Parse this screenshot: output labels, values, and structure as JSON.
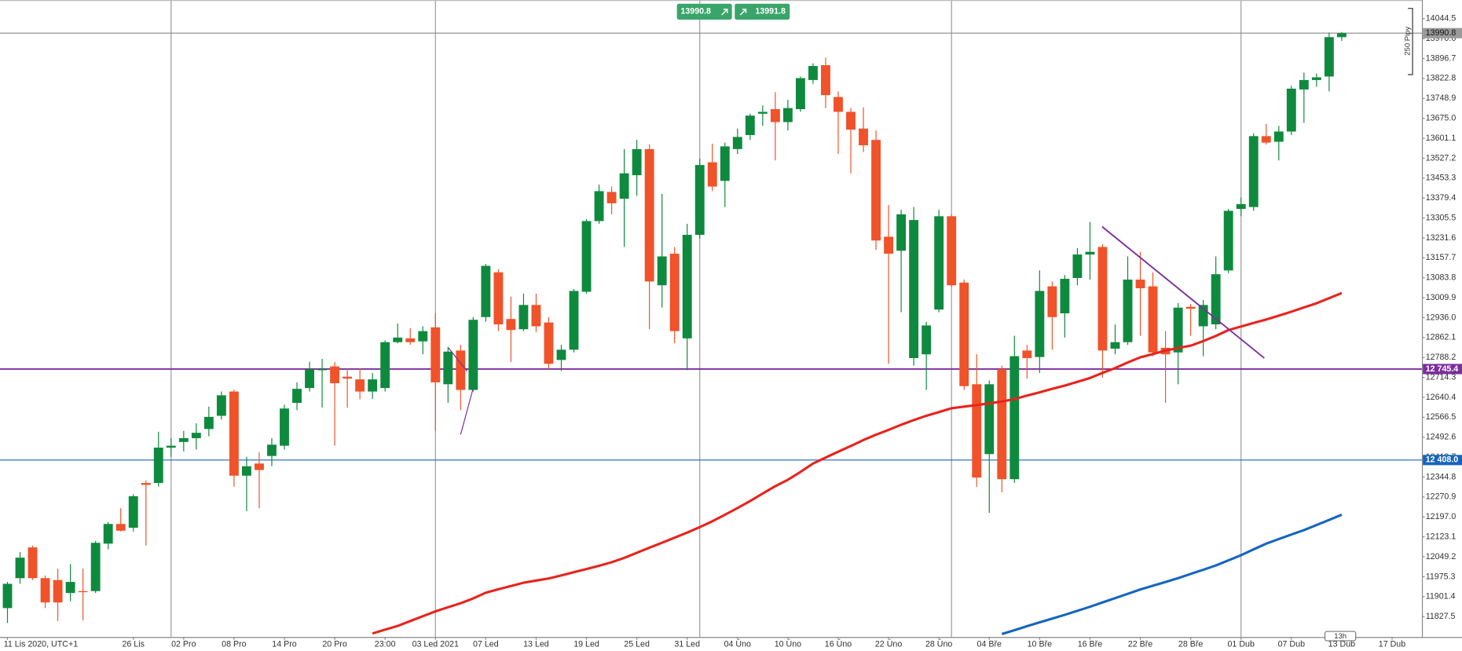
{
  "chart_data": {
    "type": "candlestick",
    "up_color": "#0e8a3e",
    "down_color": "#f0522a",
    "ylim": [
      11751.8,
      14113.7
    ],
    "yticks": [
      14044.5,
      13970.6,
      13896.7,
      13822.8,
      13748.9,
      {
        "value": 13675,
        "label": "13675.0"
      },
      13601.1,
      13527.2,
      13453.3,
      13379.4,
      13305.5,
      13231.6,
      13157.7,
      13083.8,
      13009.9,
      {
        "value": 12936,
        "label": "12936.0"
      },
      12862.1,
      12788.2,
      12714.3,
      12640.4,
      12566.5,
      12492.6,
      12418.7,
      12344.8,
      12270.9,
      {
        "value": 12197,
        "label": "12197.0"
      },
      12123.1,
      12049.2,
      11975.3,
      11901.4,
      11827.5
    ],
    "categories": [
      "11 Lis 2020, UTC+1",
      null,
      null,
      null,
      null,
      null,
      null,
      null,
      null,
      null,
      "26 Lis",
      null,
      null,
      null,
      "02 Pro",
      null,
      null,
      null,
      "08 Pro",
      null,
      null,
      null,
      "14 Pro",
      null,
      null,
      null,
      "20 Pro",
      null,
      null,
      null,
      "23:00",
      null,
      null,
      null,
      "03 Led 2021",
      null,
      null,
      null,
      "07 Led",
      null,
      null,
      null,
      "13 Led",
      null,
      null,
      null,
      "19 Led",
      null,
      null,
      null,
      "25 Led",
      null,
      null,
      null,
      "31 Led",
      null,
      null,
      null,
      "04 Úno",
      null,
      null,
      null,
      "10 Úno",
      null,
      null,
      null,
      "16 Úno",
      null,
      null,
      null,
      "22 Úno",
      null,
      null,
      null,
      "28 Úno",
      null,
      null,
      null,
      "04 Bře",
      null,
      null,
      null,
      "10 Bře",
      null,
      null,
      null,
      "16 Bře",
      null,
      null,
      null,
      "22 Bře",
      null,
      null,
      null,
      "28 Bře",
      null,
      null,
      null,
      "01 Dub",
      null,
      null,
      null,
      "07 Dub",
      null,
      null,
      null,
      "13 Dub",
      null,
      null,
      null,
      "17 Dub"
    ],
    "open": [
      11859,
      11970,
      12084,
      11970,
      11963,
      11915,
      11922,
      11922,
      12098,
      12171,
      12157,
      12323,
      12323,
      12454,
      12475,
      12489,
      12523,
      12572,
      12662,
      12350,
      12395,
      12423,
      12461,
      12620,
      12675,
      12741,
      12755,
      12717,
      12707,
      12662,
      12675,
      12845,
      12859,
      12848,
      12900,
      12689,
      12814,
      12668,
      12938,
      13104,
      12931,
      12893,
      12983,
      12918,
      12779,
      12817,
      13032,
      13294,
      13402,
      13377,
      13464,
      13561,
      13056,
      13173,
      12859,
      13243,
      13512,
      13443,
      13561,
      13613,
      13692,
      13709,
      13661,
      13709,
      13817,
      13872,
      13754,
      13699,
      13637,
      13595,
      13236,
      13184,
      12786,
      12800,
      12966,
      13312,
      13066,
      12689,
      12430,
      12745,
      12337,
      12814,
      12790,
      13052,
      12952,
      13083,
      13170,
      13198,
      12821,
      12845,
      13077,
      13052,
      12824,
      12807,
      12976,
      12904,
      12911,
      13111,
      13339,
      13346,
      13609,
      13588,
      13626,
      13782,
      13817,
      13830,
      13976,
      null,
      null,
      null,
      null
    ],
    "high": [
      11956,
      12067,
      12091,
      11980,
      12005,
      12022,
      12005,
      12108,
      12178,
      12229,
      12281,
      12333,
      12513,
      12489,
      12516,
      12544,
      12606,
      12662,
      12668,
      12420,
      12437,
      12489,
      12613,
      12696,
      12772,
      12783,
      12772,
      12748,
      12748,
      12731,
      12852,
      12914,
      12897,
      12904,
      12952,
      12828,
      12835,
      12938,
      13135,
      13115,
      13014,
      13025,
      13025,
      12938,
      12835,
      13042,
      13301,
      13429,
      13422,
      13561,
      13595,
      13578,
      13395,
      13198,
      13284,
      13526,
      13581,
      13585,
      13637,
      13692,
      13723,
      13772,
      13744,
      13830,
      13879,
      13900,
      13775,
      13713,
      13716,
      13630,
      13353,
      13336,
      13346,
      12921,
      13336,
      13319,
      13077,
      12800,
      12703,
      12758,
      12869,
      12835,
      13111,
      13070,
      13094,
      13194,
      13291,
      13208,
      12911,
      13163,
      13180,
      13104,
      12886,
      12990,
      12987,
      13001,
      13163,
      13339,
      13381,
      13619,
      13654,
      13647,
      13796,
      13844,
      13841,
      13993,
      13995,
      null,
      null,
      null,
      null
    ],
    "low": [
      11804,
      11949,
      11963,
      11859,
      11811,
      11884,
      11814,
      11915,
      12077,
      12143,
      12143,
      12091,
      12309,
      12420,
      12440,
      12447,
      12496,
      12558,
      12309,
      12219,
      12229,
      12385,
      12447,
      12593,
      12662,
      12603,
      12461,
      12603,
      12634,
      12634,
      12662,
      12841,
      12835,
      12800,
      12516,
      12620,
      12593,
      12662,
      12921,
      12886,
      12772,
      12886,
      12883,
      12745,
      12738,
      12807,
      13025,
      13284,
      13319,
      13198,
      13388,
      12893,
      12973,
      12841,
      12741,
      13229,
      13405,
      13346,
      13543,
      13595,
      13647,
      13519,
      13630,
      13699,
      13803,
      13713,
      13543,
      13471,
      13550,
      13187,
      12765,
      12956,
      12758,
      12668,
      12956,
      13049,
      12668,
      12309,
      12212,
      12288,
      12323,
      12710,
      12731,
      12817,
      12862,
      13056,
      13077,
      12714,
      12800,
      12835,
      12869,
      12793,
      12620,
      12689,
      12869,
      12793,
      12893,
      13101,
      13312,
      13332,
      13578,
      13519,
      13613,
      13658,
      13792,
      13775,
      13962,
      null,
      null,
      null,
      null
    ],
    "close": [
      11949,
      12046,
      11970,
      11880,
      11880,
      11956,
      11918,
      12101,
      12171,
      12146,
      12274,
      12316,
      12454,
      12461,
      12489,
      12509,
      12568,
      12648,
      12350,
      12385,
      12371,
      12465,
      12599,
      12672,
      12745,
      12745,
      12693,
      12710,
      12662,
      12707,
      12845,
      12862,
      12845,
      12886,
      12696,
      12810,
      12668,
      12928,
      13128,
      12911,
      12890,
      12983,
      12904,
      12765,
      12817,
      13035,
      13294,
      13405,
      13360,
      13471,
      13561,
      13070,
      13163,
      12886,
      13243,
      13502,
      13422,
      13571,
      13606,
      13685,
      13699,
      13661,
      13713,
      13824,
      13869,
      13761,
      13699,
      13633,
      13575,
      13222,
      13173,
      13319,
      13298,
      12907,
      13312,
      13056,
      12682,
      12343,
      12689,
      12337,
      12793,
      12786,
      13035,
      12938,
      13080,
      13170,
      13180,
      12814,
      12845,
      13077,
      13045,
      12807,
      12800,
      12973,
      12969,
      12983,
      13097,
      13332,
      13357,
      13609,
      13585,
      13626,
      13785,
      13817,
      13827,
      13976,
      13990.8,
      null,
      null,
      null,
      null
    ],
    "lines": [
      {
        "color": "#e8231c",
        "values": [
          null,
          null,
          null,
          null,
          null,
          null,
          null,
          null,
          null,
          null,
          null,
          null,
          null,
          null,
          null,
          null,
          null,
          null,
          null,
          null,
          null,
          null,
          null,
          null,
          null,
          null,
          null,
          null,
          null,
          11765,
          11779,
          11793,
          11811,
          11829,
          11847,
          11862,
          11877,
          11895,
          11916,
          11929,
          11941,
          11953,
          11961,
          11969,
          11980,
          11992,
          12004,
          12016,
          12029,
          12045,
          12064,
          12083,
          12101,
          12120,
          12139,
          12159,
          12181,
          12205,
          12230,
          12256,
          12284,
          12311,
          12335,
          12364,
          12395,
          12417,
          12439,
          12460,
          12482,
          12502,
          12520,
          12539,
          12556,
          12572,
          12586,
          12600,
          12606,
          12612,
          12618,
          12625,
          12634,
          12647,
          12659,
          12672,
          12684,
          12698,
          12712,
          12731,
          12749,
          12770,
          12789,
          12801,
          12814,
          12823,
          12832,
          12849,
          12868,
          12890,
          12903,
          12916,
          12929,
          12943,
          12958,
          12974,
          12989,
          13008,
          13027,
          null,
          null,
          null,
          null
        ]
      },
      {
        "color": "#1565c0",
        "values": [
          null,
          null,
          null,
          null,
          null,
          null,
          null,
          null,
          null,
          null,
          null,
          null,
          null,
          null,
          null,
          null,
          null,
          null,
          null,
          null,
          null,
          null,
          null,
          null,
          null,
          null,
          null,
          null,
          null,
          null,
          null,
          null,
          null,
          null,
          null,
          null,
          null,
          null,
          null,
          null,
          null,
          null,
          null,
          null,
          null,
          null,
          null,
          null,
          null,
          null,
          null,
          null,
          null,
          null,
          null,
          null,
          null,
          null,
          null,
          null,
          null,
          null,
          null,
          null,
          null,
          null,
          null,
          null,
          null,
          null,
          null,
          null,
          null,
          null,
          null,
          null,
          null,
          null,
          null,
          11763,
          11777,
          11792,
          11806,
          11820,
          11834,
          11849,
          11864,
          11880,
          11896,
          11912,
          11928,
          11942,
          11956,
          11970,
          11986,
          12001,
          12017,
          12036,
          12055,
          12077,
          12098,
          12115,
          12132,
          12148,
          12167,
          12186,
          12205,
          null,
          null,
          null,
          null
        ]
      }
    ],
    "hlines": [
      {
        "value": 12745.4,
        "label": "12 745.4",
        "color": "#7b2e9e"
      },
      {
        "value": 12408.0,
        "label": "12 408.0",
        "color": "#1565c0"
      }
    ],
    "price_line": 13990.8,
    "quotes": [
      13990.8,
      13991.8
    ],
    "pip_range_label": "250 Pipy",
    "timeframe_label": "13h"
  }
}
